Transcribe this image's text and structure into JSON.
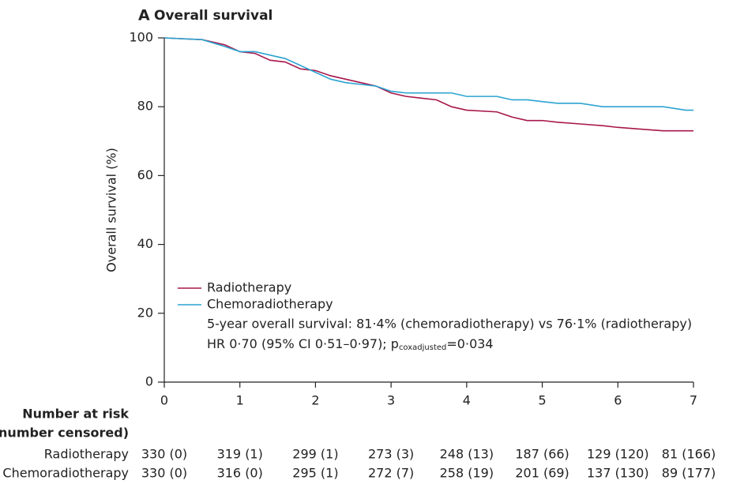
{
  "chart_data": {
    "type": "line",
    "panel_label": "A",
    "title": "Overall survival",
    "ylabel": "Overall survival (%)",
    "xlim": [
      0,
      7
    ],
    "xticks": [
      0,
      1,
      2,
      3,
      4,
      5,
      6,
      7
    ],
    "ylim": [
      0,
      100
    ],
    "yticks": [
      0,
      20,
      40,
      60,
      80,
      100
    ],
    "x": [
      0,
      0.5,
      0.8,
      1,
      1.2,
      1.4,
      1.6,
      1.8,
      2,
      2.2,
      2.4,
      2.6,
      2.8,
      3,
      3.2,
      3.4,
      3.6,
      3.8,
      4,
      4.4,
      4.6,
      4.8,
      5,
      5.2,
      5.5,
      5.8,
      6,
      6.3,
      6.6,
      6.9,
      7
    ],
    "series": [
      {
        "name": "Radiotherapy",
        "color": "#a8174c",
        "values": [
          100,
          99.5,
          98,
          96,
          95.5,
          93.5,
          93,
          91,
          90.5,
          89,
          88,
          87,
          86,
          84,
          83,
          82.5,
          82,
          80,
          79,
          78.5,
          77,
          76,
          76,
          75.5,
          75,
          74.5,
          74,
          73.5,
          73,
          73,
          73
        ]
      },
      {
        "name": "Chemoradiotherapy",
        "color": "#2ba4d1",
        "values": [
          100,
          99.5,
          97.5,
          96,
          96,
          95,
          94,
          92,
          90,
          88,
          87,
          86.5,
          86,
          84.5,
          84,
          84,
          84,
          84,
          83,
          83,
          82,
          82,
          81.5,
          81,
          81,
          80,
          80,
          80,
          80,
          79,
          79
        ]
      }
    ],
    "annotations": [
      "5-year overall survival: 81·4% (chemoradiotherapy) vs 76·1% (radiotherapy)"
    ],
    "hr_text": [
      "HR 0·70 (95% CI 0·51–0·97); p",
      "coxadjusted",
      "=0·034"
    ],
    "risk_table": {
      "header": [
        "Number at risk",
        "(number censored)"
      ],
      "rows": [
        {
          "name": "Radiotherapy",
          "values": [
            "330 (0)",
            "319 (1)",
            "299 (1)",
            "273 (3)",
            "248 (13)",
            "187 (66)",
            "129 (120)",
            "81 (166)"
          ]
        },
        {
          "name": "Chemoradiotherapy",
          "values": [
            "330 (0)",
            "316 (0)",
            "295 (1)",
            "272 (7)",
            "258 (19)",
            "201 (69)",
            "137 (130)",
            "89 (177)"
          ]
        }
      ]
    }
  }
}
